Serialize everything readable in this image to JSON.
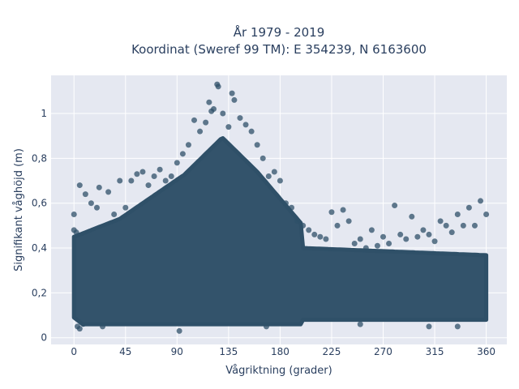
{
  "chart_data": {
    "type": "scatter",
    "title": "År 1979 - 2019",
    "subtitle": "Koordinat (Sweref 99 TM): E 354239, N 6163600",
    "xlabel": "Vågriktning (grader)",
    "ylabel": "Signifikant våghöjd (m)",
    "xlim": [
      -20,
      378
    ],
    "ylim": [
      -0.03,
      1.17
    ],
    "x_ticks": [
      0,
      45,
      90,
      135,
      180,
      225,
      270,
      315,
      360
    ],
    "x_tick_labels": [
      "0",
      "45",
      "90",
      "135",
      "180",
      "225",
      "270",
      "315",
      "360"
    ],
    "y_ticks": [
      0,
      0.2,
      0.4,
      0.6,
      0.8,
      1
    ],
    "y_tick_labels": [
      "0",
      "0,2",
      "0,4",
      "0,6",
      "0,8",
      "1"
    ],
    "grid": true,
    "marker_color": "#2f5068",
    "background_color": "#e5e8f1",
    "series": [
      {
        "name": "",
        "points": [
          [
            0,
            0.55
          ],
          [
            0,
            0.48
          ],
          [
            2,
            0.47
          ],
          [
            5,
            0.68
          ],
          [
            3,
            0.05
          ],
          [
            5,
            0.04
          ],
          [
            10,
            0.64
          ],
          [
            15,
            0.6
          ],
          [
            20,
            0.58
          ],
          [
            22,
            0.67
          ],
          [
            25,
            0.05
          ],
          [
            30,
            0.65
          ],
          [
            35,
            0.55
          ],
          [
            40,
            0.7
          ],
          [
            45,
            0.58
          ],
          [
            50,
            0.7
          ],
          [
            55,
            0.73
          ],
          [
            60,
            0.74
          ],
          [
            65,
            0.68
          ],
          [
            70,
            0.72
          ],
          [
            75,
            0.75
          ],
          [
            80,
            0.7
          ],
          [
            85,
            0.72
          ],
          [
            90,
            0.78
          ],
          [
            95,
            0.82
          ],
          [
            100,
            0.86
          ],
          [
            105,
            0.97
          ],
          [
            110,
            0.92
          ],
          [
            115,
            0.96
          ],
          [
            118,
            1.05
          ],
          [
            120,
            1.01
          ],
          [
            122,
            1.02
          ],
          [
            125,
            1.13
          ],
          [
            126,
            1.12
          ],
          [
            130,
            1.0
          ],
          [
            135,
            0.94
          ],
          [
            138,
            1.09
          ],
          [
            140,
            1.06
          ],
          [
            145,
            0.98
          ],
          [
            150,
            0.95
          ],
          [
            155,
            0.92
          ],
          [
            160,
            0.86
          ],
          [
            165,
            0.8
          ],
          [
            170,
            0.72
          ],
          [
            175,
            0.74
          ],
          [
            180,
            0.7
          ],
          [
            185,
            0.6
          ],
          [
            190,
            0.58
          ],
          [
            195,
            0.52
          ],
          [
            200,
            0.5
          ],
          [
            205,
            0.48
          ],
          [
            210,
            0.46
          ],
          [
            215,
            0.45
          ],
          [
            220,
            0.44
          ],
          [
            225,
            0.56
          ],
          [
            230,
            0.5
          ],
          [
            235,
            0.57
          ],
          [
            240,
            0.52
          ],
          [
            245,
            0.42
          ],
          [
            250,
            0.44
          ],
          [
            255,
            0.4
          ],
          [
            260,
            0.48
          ],
          [
            265,
            0.41
          ],
          [
            270,
            0.45
          ],
          [
            275,
            0.42
          ],
          [
            280,
            0.59
          ],
          [
            285,
            0.46
          ],
          [
            290,
            0.44
          ],
          [
            295,
            0.54
          ],
          [
            300,
            0.45
          ],
          [
            305,
            0.48
          ],
          [
            310,
            0.46
          ],
          [
            315,
            0.43
          ],
          [
            320,
            0.52
          ],
          [
            325,
            0.5
          ],
          [
            330,
            0.47
          ],
          [
            335,
            0.55
          ],
          [
            340,
            0.5
          ],
          [
            345,
            0.58
          ],
          [
            350,
            0.5
          ],
          [
            355,
            0.61
          ],
          [
            360,
            0.55
          ],
          [
            92,
            0.03
          ],
          [
            168,
            0.05
          ],
          [
            250,
            0.06
          ],
          [
            310,
            0.05
          ],
          [
            335,
            0.05
          ]
        ]
      }
    ]
  }
}
